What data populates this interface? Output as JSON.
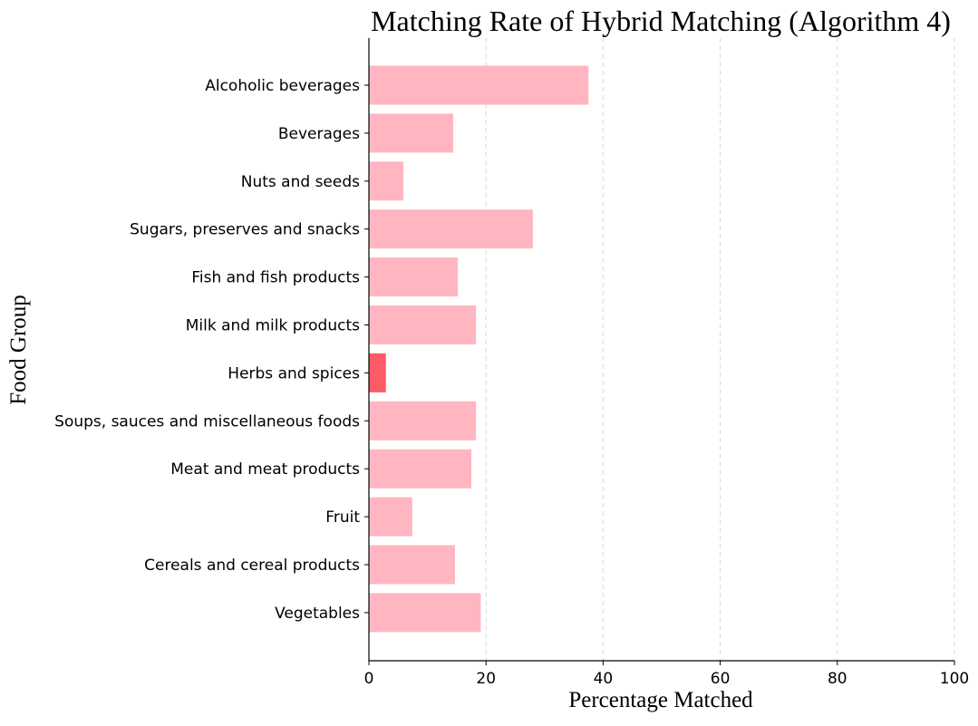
{
  "chart_data": {
    "type": "bar",
    "orientation": "horizontal",
    "title": "Matching Rate of Hybrid Matching (Algorithm 4)",
    "xlabel": "Percentage Matched",
    "ylabel": "Food Group",
    "xlim": [
      0,
      100
    ],
    "xticks": [
      0,
      20,
      40,
      60,
      80,
      100
    ],
    "grid": "vertical dashed",
    "categories": [
      "Alcoholic beverages",
      "Beverages",
      "Nuts and seeds",
      "Sugars, preserves and snacks",
      "Fish and fish products",
      "Milk and milk products",
      "Herbs and spices",
      "Soups, sauces and miscellaneous foods",
      "Meat and meat products",
      "Fruit",
      "Cereals and cereal products",
      "Vegetables"
    ],
    "values": [
      37.5,
      14.4,
      5.9,
      28.0,
      15.2,
      18.3,
      2.9,
      18.3,
      17.5,
      7.4,
      14.7,
      19.1
    ],
    "highlight_index": 6,
    "colors": {
      "bar": "#ffb6c1",
      "highlight": "#ff5a67",
      "grid": "#d9d9d9",
      "axis": "#000000"
    }
  }
}
